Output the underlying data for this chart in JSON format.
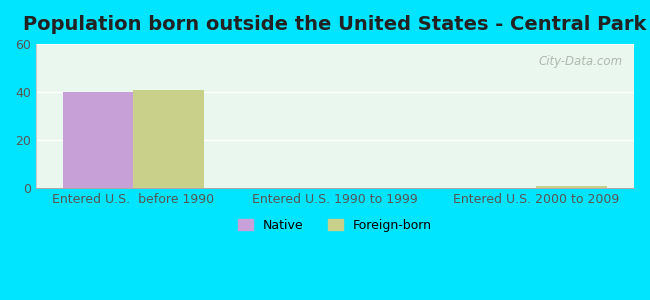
{
  "title": "Population born outside the United States - Central Park",
  "categories": [
    "Entered U.S.  before 1990",
    "Entered U.S. 1990 to 1999",
    "Entered U.S. 2000 to 2009"
  ],
  "native_values": [
    40,
    0,
    0
  ],
  "foreign_values": [
    41,
    0,
    1
  ],
  "native_color": "#c8a0d8",
  "foreign_color": "#c8d08a",
  "ylim": [
    0,
    60
  ],
  "yticks": [
    0,
    20,
    40,
    60
  ],
  "background_outer": "#00e5ff",
  "background_plot_top": "#eaf7ee",
  "background_plot_bottom": "#d8f5ee",
  "title_fontsize": 14,
  "tick_label_fontsize": 9,
  "legend_fontsize": 9,
  "watermark": "City-Data.com",
  "bar_width": 0.35,
  "group_positions": [
    0,
    1,
    2
  ]
}
